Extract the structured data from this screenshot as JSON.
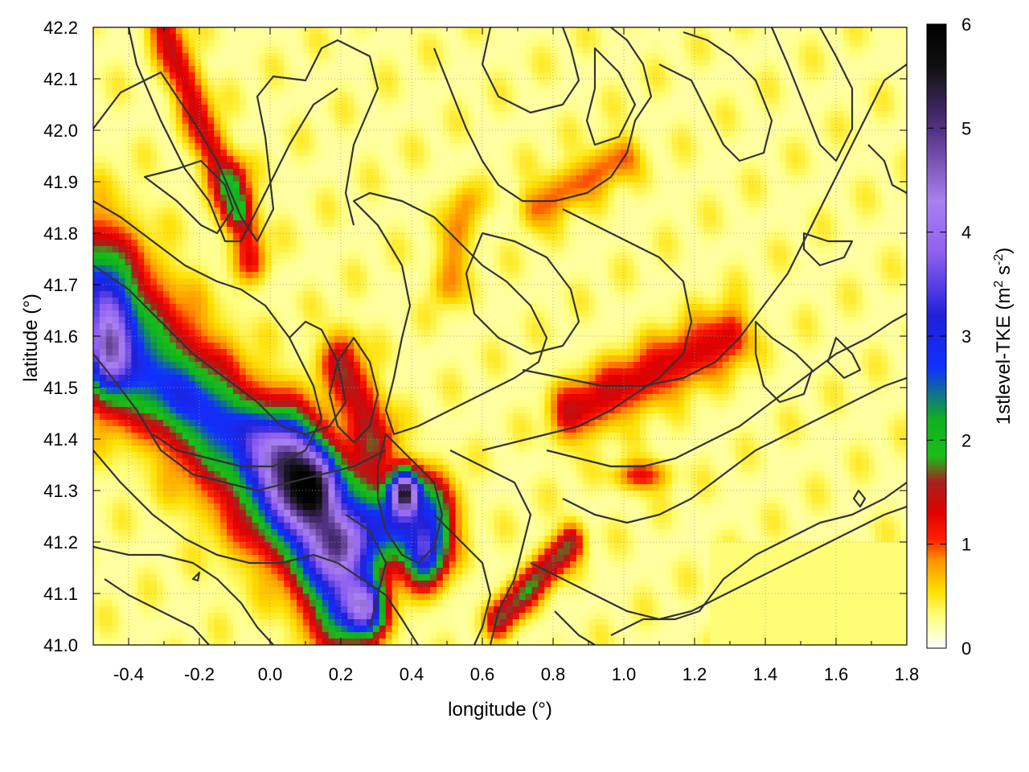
{
  "chart_data": {
    "type": "heatmap",
    "title": "",
    "xlabel": "longitude (°)",
    "ylabel": "latitude (°)",
    "xlim": [
      -0.5,
      1.8
    ],
    "ylim": [
      41.0,
      42.2
    ],
    "x_ticks": [
      "-0.4",
      "-0.2",
      "0.0",
      "0.2",
      "0.4",
      "0.6",
      "0.8",
      "1.0",
      "1.2",
      "1.4",
      "1.6",
      "1.8"
    ],
    "y_ticks": [
      "41.0",
      "41.1",
      "41.2",
      "41.3",
      "41.4",
      "41.5",
      "41.6",
      "41.7",
      "41.8",
      "41.9",
      "42.0",
      "42.1",
      "42.2"
    ],
    "grid": true,
    "colorbar": {
      "label": "1stlevel-TKE (m",
      "label_sup1": "2",
      "label_mid": " s",
      "label_sup2": "-2",
      "label_end": ")",
      "range": [
        0,
        6
      ],
      "ticks": [
        "0",
        "1",
        "2",
        "3",
        "4",
        "5",
        "6"
      ],
      "palette": [
        "#ffffff",
        "#ffff80",
        "#ffe000",
        "#ff9000",
        "#ff2000",
        "#e00000",
        "#a82020",
        "#18c018",
        "#10b020",
        "#1030ff",
        "#2020d8",
        "#9060f0",
        "#a880f0",
        "#503080",
        "#101010",
        "#000000"
      ],
      "palette_stops": [
        0,
        0.3,
        0.55,
        0.85,
        1.05,
        1.3,
        1.6,
        1.85,
        2.2,
        2.7,
        3.2,
        3.8,
        4.3,
        5.0,
        5.6,
        6.0
      ]
    },
    "features": {
      "high_tke_core": {
        "lon": [
          0.05,
          0.5
        ],
        "lat": [
          41.0,
          41.4
        ],
        "tke_max": 6.0
      },
      "west_coast_band": {
        "lon": [
          -0.5,
          -0.3
        ],
        "lat": [
          41.4,
          41.75
        ],
        "tke_max": 4.0
      },
      "se_sea_region": {
        "lon": [
          1.3,
          1.8
        ],
        "lat": [
          41.0,
          41.2
        ],
        "tke": 0.3
      }
    }
  }
}
